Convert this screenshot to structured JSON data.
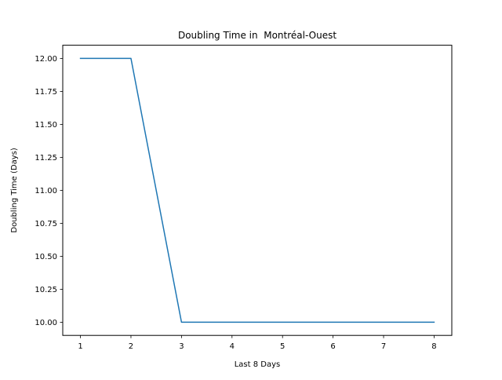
{
  "chart_data": {
    "type": "line",
    "title": "Doubling Time in  Montréal-Ouest",
    "xlabel": "Last 8 Days",
    "ylabel": "Doubling Time (Days)",
    "x": [
      1,
      2,
      3,
      4,
      5,
      6,
      7,
      8
    ],
    "series": [
      {
        "values": [
          12.0,
          12.0,
          10.0,
          10.0,
          10.0,
          10.0,
          10.0,
          10.0
        ],
        "color": "#1f77b4"
      }
    ],
    "xlim": [
      0.65,
      8.35
    ],
    "ylim": [
      9.9,
      12.1
    ],
    "xticks": [
      1,
      2,
      3,
      4,
      5,
      6,
      7,
      8
    ],
    "xtick_labels": [
      "1",
      "2",
      "3",
      "4",
      "5",
      "6",
      "7",
      "8"
    ],
    "yticks": [
      10.0,
      10.25,
      10.5,
      10.75,
      11.0,
      11.25,
      11.5,
      11.75,
      12.0
    ],
    "ytick_labels": [
      "10.00",
      "10.25",
      "10.50",
      "10.75",
      "11.00",
      "11.25",
      "11.50",
      "11.75",
      "12.00"
    ],
    "grid": false,
    "legend": "none"
  }
}
